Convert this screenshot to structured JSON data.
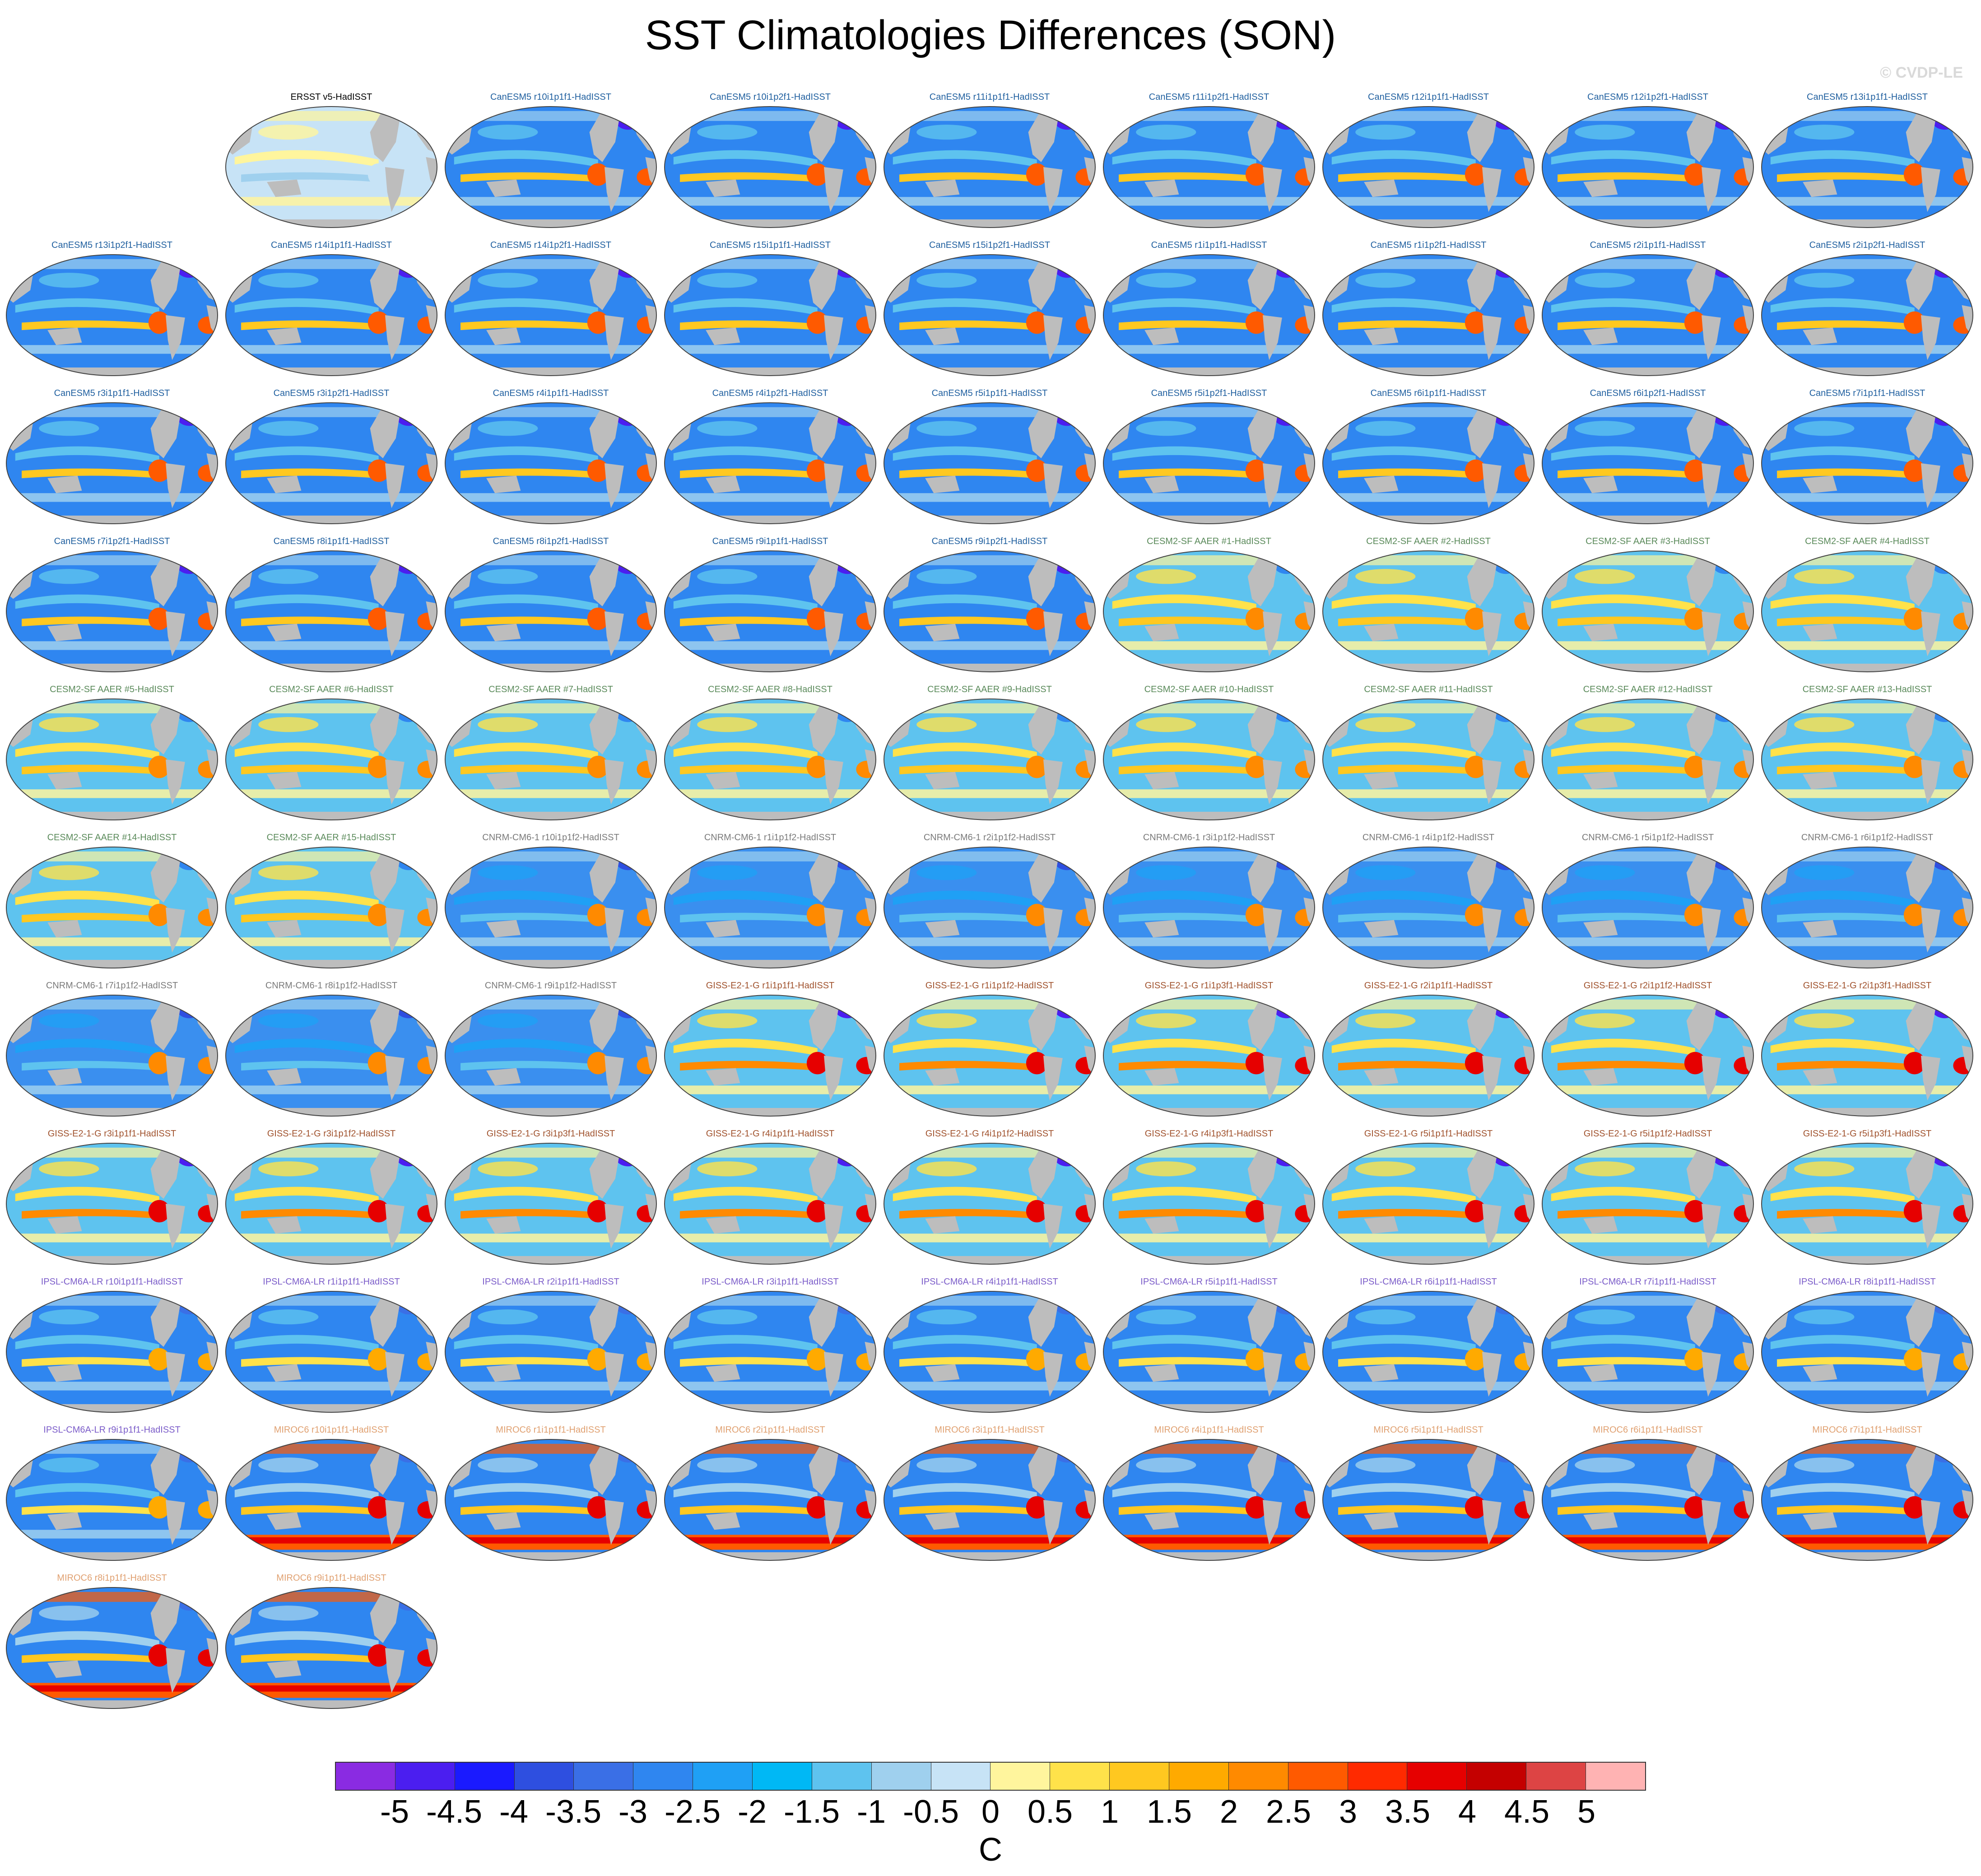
{
  "title": "SST Climatologies Differences (SON)",
  "copyright": "© CVDP-LE",
  "colors": {
    "ocean_base": "#4aa8f0",
    "land": "#bdbdbd",
    "frame": "#444444"
  },
  "panels": [
    {
      "label": "ERSST v5-HadISST",
      "group": "obs"
    },
    {
      "label": "CanESM5 r10i1p1f1-HadISST",
      "group": "canesm5"
    },
    {
      "label": "CanESM5 r10i1p2f1-HadISST",
      "group": "canesm5"
    },
    {
      "label": "CanESM5 r11i1p1f1-HadISST",
      "group": "canesm5"
    },
    {
      "label": "CanESM5 r11i1p2f1-HadISST",
      "group": "canesm5"
    },
    {
      "label": "CanESM5 r12i1p1f1-HadISST",
      "group": "canesm5"
    },
    {
      "label": "CanESM5 r12i1p2f1-HadISST",
      "group": "canesm5"
    },
    {
      "label": "CanESM5 r13i1p1f1-HadISST",
      "group": "canesm5"
    },
    {
      "label": "CanESM5 r13i1p2f1-HadISST",
      "group": "canesm5"
    },
    {
      "label": "CanESM5 r14i1p1f1-HadISST",
      "group": "canesm5"
    },
    {
      "label": "CanESM5 r14i1p2f1-HadISST",
      "group": "canesm5"
    },
    {
      "label": "CanESM5 r15i1p1f1-HadISST",
      "group": "canesm5"
    },
    {
      "label": "CanESM5 r15i1p2f1-HadISST",
      "group": "canesm5"
    },
    {
      "label": "CanESM5 r1i1p1f1-HadISST",
      "group": "canesm5"
    },
    {
      "label": "CanESM5 r1i1p2f1-HadISST",
      "group": "canesm5"
    },
    {
      "label": "CanESM5 r2i1p1f1-HadISST",
      "group": "canesm5"
    },
    {
      "label": "CanESM5 r2i1p2f1-HadISST",
      "group": "canesm5"
    },
    {
      "label": "CanESM5 r3i1p1f1-HadISST",
      "group": "canesm5"
    },
    {
      "label": "CanESM5 r3i1p2f1-HadISST",
      "group": "canesm5"
    },
    {
      "label": "CanESM5 r4i1p1f1-HadISST",
      "group": "canesm5"
    },
    {
      "label": "CanESM5 r4i1p2f1-HadISST",
      "group": "canesm5"
    },
    {
      "label": "CanESM5 r5i1p1f1-HadISST",
      "group": "canesm5"
    },
    {
      "label": "CanESM5 r5i1p2f1-HadISST",
      "group": "canesm5"
    },
    {
      "label": "CanESM5 r6i1p1f1-HadISST",
      "group": "canesm5"
    },
    {
      "label": "CanESM5 r6i1p2f1-HadISST",
      "group": "canesm5"
    },
    {
      "label": "CanESM5 r7i1p1f1-HadISST",
      "group": "canesm5"
    },
    {
      "label": "CanESM5 r7i1p2f1-HadISST",
      "group": "canesm5"
    },
    {
      "label": "CanESM5 r8i1p1f1-HadISST",
      "group": "canesm5"
    },
    {
      "label": "CanESM5 r8i1p2f1-HadISST",
      "group": "canesm5"
    },
    {
      "label": "CanESM5 r9i1p1f1-HadISST",
      "group": "canesm5"
    },
    {
      "label": "CanESM5 r9i1p2f1-HadISST",
      "group": "canesm5"
    },
    {
      "label": "CESM2-SF AAER #1-HadISST",
      "group": "cesm2"
    },
    {
      "label": "CESM2-SF AAER #2-HadISST",
      "group": "cesm2"
    },
    {
      "label": "CESM2-SF AAER #3-HadISST",
      "group": "cesm2"
    },
    {
      "label": "CESM2-SF AAER #4-HadISST",
      "group": "cesm2"
    },
    {
      "label": "CESM2-SF AAER #5-HadISST",
      "group": "cesm2"
    },
    {
      "label": "CESM2-SF AAER #6-HadISST",
      "group": "cesm2"
    },
    {
      "label": "CESM2-SF AAER #7-HadISST",
      "group": "cesm2"
    },
    {
      "label": "CESM2-SF AAER #8-HadISST",
      "group": "cesm2"
    },
    {
      "label": "CESM2-SF AAER #9-HadISST",
      "group": "cesm2"
    },
    {
      "label": "CESM2-SF AAER #10-HadISST",
      "group": "cesm2"
    },
    {
      "label": "CESM2-SF AAER #11-HadISST",
      "group": "cesm2"
    },
    {
      "label": "CESM2-SF AAER #12-HadISST",
      "group": "cesm2"
    },
    {
      "label": "CESM2-SF AAER #13-HadISST",
      "group": "cesm2"
    },
    {
      "label": "CESM2-SF AAER #14-HadISST",
      "group": "cesm2"
    },
    {
      "label": "CESM2-SF AAER #15-HadISST",
      "group": "cesm2"
    },
    {
      "label": "CNRM-CM6-1 r10i1p1f2-HadISST",
      "group": "cnrm"
    },
    {
      "label": "CNRM-CM6-1 r1i1p1f2-HadISST",
      "group": "cnrm"
    },
    {
      "label": "CNRM-CM6-1 r2i1p1f2-HadISST",
      "group": "cnrm"
    },
    {
      "label": "CNRM-CM6-1 r3i1p1f2-HadISST",
      "group": "cnrm"
    },
    {
      "label": "CNRM-CM6-1 r4i1p1f2-HadISST",
      "group": "cnrm"
    },
    {
      "label": "CNRM-CM6-1 r5i1p1f2-HadISST",
      "group": "cnrm"
    },
    {
      "label": "CNRM-CM6-1 r6i1p1f2-HadISST",
      "group": "cnrm"
    },
    {
      "label": "CNRM-CM6-1 r7i1p1f2-HadISST",
      "group": "cnrm"
    },
    {
      "label": "CNRM-CM6-1 r8i1p1f2-HadISST",
      "group": "cnrm"
    },
    {
      "label": "CNRM-CM6-1 r9i1p1f2-HadISST",
      "group": "cnrm"
    },
    {
      "label": "GISS-E2-1-G r1i1p1f1-HadISST",
      "group": "giss"
    },
    {
      "label": "GISS-E2-1-G r1i1p1f2-HadISST",
      "group": "giss"
    },
    {
      "label": "GISS-E2-1-G r1i1p3f1-HadISST",
      "group": "giss"
    },
    {
      "label": "GISS-E2-1-G r2i1p1f1-HadISST",
      "group": "giss"
    },
    {
      "label": "GISS-E2-1-G r2i1p1f2-HadISST",
      "group": "giss"
    },
    {
      "label": "GISS-E2-1-G r2i1p3f1-HadISST",
      "group": "giss"
    },
    {
      "label": "GISS-E2-1-G r3i1p1f1-HadISST",
      "group": "giss"
    },
    {
      "label": "GISS-E2-1-G r3i1p1f2-HadISST",
      "group": "giss"
    },
    {
      "label": "GISS-E2-1-G r3i1p3f1-HadISST",
      "group": "giss"
    },
    {
      "label": "GISS-E2-1-G r4i1p1f1-HadISST",
      "group": "giss"
    },
    {
      "label": "GISS-E2-1-G r4i1p1f2-HadISST",
      "group": "giss"
    },
    {
      "label": "GISS-E2-1-G r4i1p3f1-HadISST",
      "group": "giss"
    },
    {
      "label": "GISS-E2-1-G r5i1p1f1-HadISST",
      "group": "giss"
    },
    {
      "label": "GISS-E2-1-G r5i1p1f2-HadISST",
      "group": "giss"
    },
    {
      "label": "GISS-E2-1-G r5i1p3f1-HadISST",
      "group": "giss"
    },
    {
      "label": "IPSL-CM6A-LR r10i1p1f1-HadISST",
      "group": "ipsl"
    },
    {
      "label": "IPSL-CM6A-LR r1i1p1f1-HadISST",
      "group": "ipsl"
    },
    {
      "label": "IPSL-CM6A-LR r2i1p1f1-HadISST",
      "group": "ipsl"
    },
    {
      "label": "IPSL-CM6A-LR r3i1p1f1-HadISST",
      "group": "ipsl"
    },
    {
      "label": "IPSL-CM6A-LR r4i1p1f1-HadISST",
      "group": "ipsl"
    },
    {
      "label": "IPSL-CM6A-LR r5i1p1f1-HadISST",
      "group": "ipsl"
    },
    {
      "label": "IPSL-CM6A-LR r6i1p1f1-HadISST",
      "group": "ipsl"
    },
    {
      "label": "IPSL-CM6A-LR r7i1p1f1-HadISST",
      "group": "ipsl"
    },
    {
      "label": "IPSL-CM6A-LR r8i1p1f1-HadISST",
      "group": "ipsl"
    },
    {
      "label": "IPSL-CM6A-LR r9i1p1f1-HadISST",
      "group": "ipsl"
    },
    {
      "label": "MIROC6 r10i1p1f1-HadISST",
      "group": "miroc6"
    },
    {
      "label": "MIROC6 r1i1p1f1-HadISST",
      "group": "miroc6"
    },
    {
      "label": "MIROC6 r2i1p1f1-HadISST",
      "group": "miroc6"
    },
    {
      "label": "MIROC6 r3i1p1f1-HadISST",
      "group": "miroc6"
    },
    {
      "label": "MIROC6 r4i1p1f1-HadISST",
      "group": "miroc6"
    },
    {
      "label": "MIROC6 r5i1p1f1-HadISST",
      "group": "miroc6"
    },
    {
      "label": "MIROC6 r6i1p1f1-HadISST",
      "group": "miroc6"
    },
    {
      "label": "MIROC6 r7i1p1f1-HadISST",
      "group": "miroc6"
    },
    {
      "label": "MIROC6 r8i1p1f1-HadISST",
      "group": "miroc6"
    },
    {
      "label": "MIROC6 r9i1p1f1-HadISST",
      "group": "miroc6"
    }
  ],
  "group_label_colors": {
    "obs": "#000000",
    "canesm5": "#1f5f9f",
    "cesm2": "#5a8a5a",
    "cnrm": "#7a7a7a",
    "giss": "#a0522d",
    "ipsl": "#7b5cc9",
    "miroc6": "#e0a070"
  },
  "group_pattern": {
    "obs": "neutral",
    "canesm5": "cold",
    "cesm2": "warm-bands",
    "cnrm": "cool",
    "giss": "warm-east",
    "ipsl": "cool-bands",
    "miroc6": "warm-south"
  },
  "colorbar": {
    "units": "C",
    "tick_labels": [
      "-5",
      "-4.5",
      "-4",
      "-3.5",
      "-3",
      "-2.5",
      "-2",
      "-1.5",
      "-1",
      "-0.5",
      "0",
      "0.5",
      "1",
      "1.5",
      "2",
      "2.5",
      "3",
      "3.5",
      "4",
      "4.5",
      "5"
    ],
    "colors": [
      "#8a2be2",
      "#4b1ef0",
      "#1a1aff",
      "#2e4fe0",
      "#3a6fe6",
      "#2f86f0",
      "#1fa0f5",
      "#00b8f5",
      "#5ec3ef",
      "#9fd0ee",
      "#c7e3f6",
      "#fff59d",
      "#ffe24a",
      "#ffc820",
      "#ffaa00",
      "#ff8a00",
      "#ff5a00",
      "#ff2a00",
      "#e60000",
      "#c40000",
      "#dd4444",
      "#ffb3b3"
    ]
  }
}
